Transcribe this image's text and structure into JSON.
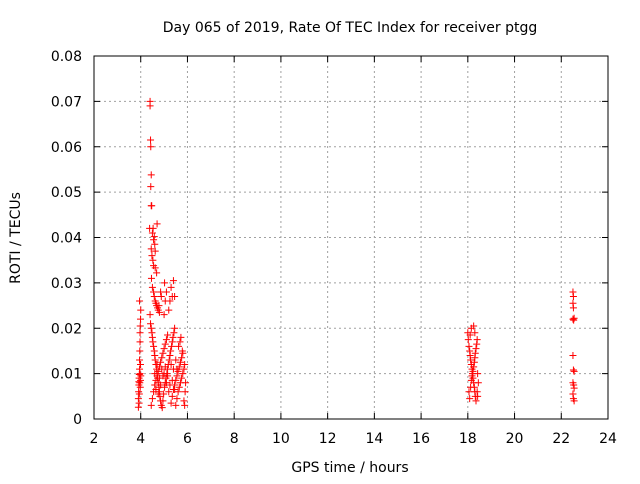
{
  "chart_data": {
    "type": "scatter",
    "title": "Day 065 of 2019, Rate Of TEC Index for receiver ptgg",
    "xlabel": "GPS time / hours",
    "ylabel": "ROTI / TECUs",
    "xlim": [
      2,
      24
    ],
    "ylim": [
      0,
      0.08
    ],
    "xticks": [
      2,
      4,
      6,
      8,
      10,
      12,
      14,
      16,
      18,
      20,
      22,
      24
    ],
    "yticks": [
      0,
      0.01,
      0.02,
      0.03,
      0.04,
      0.05,
      0.06,
      0.07,
      0.08
    ],
    "xtick_labels": [
      "2",
      "4",
      "6",
      "8",
      "10",
      "12",
      "14",
      "16",
      "18",
      "20",
      "22",
      "24"
    ],
    "ytick_labels": [
      "0",
      "0.01",
      "0.02",
      "0.03",
      "0.04",
      "0.05",
      "0.06",
      "0.07",
      "0.08"
    ],
    "grid": true,
    "marker": "+",
    "series": [
      {
        "color": "#ff0000",
        "points": [
          [
            3.9,
            0.0026
          ],
          [
            3.9,
            0.0045
          ],
          [
            3.91,
            0.006
          ],
          [
            3.92,
            0.0075
          ],
          [
            3.92,
            0.0082
          ],
          [
            3.93,
            0.009
          ],
          [
            3.94,
            0.0098
          ],
          [
            3.95,
            0.011
          ],
          [
            3.95,
            0.013
          ],
          [
            3.96,
            0.015
          ],
          [
            3.97,
            0.017
          ],
          [
            3.97,
            0.019
          ],
          [
            3.98,
            0.0205
          ],
          [
            3.99,
            0.022
          ],
          [
            4.0,
            0.024
          ],
          [
            3.95,
            0.026
          ],
          [
            3.96,
            0.008
          ],
          [
            3.98,
            0.007
          ],
          [
            3.99,
            0.0085
          ],
          [
            4.0,
            0.0095
          ],
          [
            3.93,
            0.0035
          ],
          [
            3.94,
            0.0055
          ],
          [
            3.97,
            0.01
          ],
          [
            3.99,
            0.012
          ],
          [
            4.4,
            0.07
          ],
          [
            4.4,
            0.069
          ],
          [
            4.42,
            0.0615
          ],
          [
            4.43,
            0.06
          ],
          [
            4.45,
            0.0538
          ],
          [
            4.43,
            0.0512
          ],
          [
            4.45,
            0.047
          ],
          [
            4.47,
            0.047
          ],
          [
            4.38,
            0.042
          ],
          [
            4.5,
            0.041
          ],
          [
            4.55,
            0.0395
          ],
          [
            4.58,
            0.0402
          ],
          [
            4.6,
            0.0385
          ],
          [
            4.62,
            0.037
          ],
          [
            4.45,
            0.0375
          ],
          [
            4.48,
            0.036
          ],
          [
            4.52,
            0.035
          ],
          [
            4.55,
            0.0338
          ],
          [
            4.62,
            0.0333
          ],
          [
            4.68,
            0.0322
          ],
          [
            4.7,
            0.043
          ],
          [
            4.53,
            0.042
          ],
          [
            4.46,
            0.031
          ],
          [
            4.5,
            0.029
          ],
          [
            4.55,
            0.028
          ],
          [
            4.58,
            0.027
          ],
          [
            4.62,
            0.026
          ],
          [
            4.65,
            0.0255
          ],
          [
            4.68,
            0.025
          ],
          [
            4.72,
            0.0245
          ],
          [
            4.75,
            0.024
          ],
          [
            4.78,
            0.025
          ],
          [
            4.8,
            0.0235
          ],
          [
            4.85,
            0.028
          ],
          [
            4.88,
            0.027
          ],
          [
            4.4,
            0.023
          ],
          [
            4.42,
            0.021
          ],
          [
            4.45,
            0.02
          ],
          [
            4.48,
            0.019
          ],
          [
            4.5,
            0.018
          ],
          [
            4.52,
            0.017
          ],
          [
            4.55,
            0.016
          ],
          [
            4.58,
            0.015
          ],
          [
            4.6,
            0.014
          ],
          [
            4.62,
            0.013
          ],
          [
            4.65,
            0.012
          ],
          [
            4.68,
            0.011
          ],
          [
            4.7,
            0.01
          ],
          [
            4.72,
            0.009
          ],
          [
            4.75,
            0.008
          ],
          [
            4.78,
            0.007
          ],
          [
            4.8,
            0.006
          ],
          [
            4.82,
            0.005
          ],
          [
            4.85,
            0.004
          ],
          [
            4.88,
            0.003
          ],
          [
            4.45,
            0.003
          ],
          [
            4.5,
            0.0045
          ],
          [
            4.55,
            0.006
          ],
          [
            4.6,
            0.0075
          ],
          [
            4.65,
            0.0085
          ],
          [
            4.7,
            0.0095
          ],
          [
            4.75,
            0.0105
          ],
          [
            4.8,
            0.0115
          ],
          [
            4.85,
            0.0125
          ],
          [
            4.9,
            0.0135
          ],
          [
            4.95,
            0.0145
          ],
          [
            5.0,
            0.0155
          ],
          [
            5.05,
            0.0165
          ],
          [
            5.1,
            0.0175
          ],
          [
            5.15,
            0.0185
          ],
          [
            4.92,
            0.0025
          ],
          [
            4.95,
            0.004
          ],
          [
            4.98,
            0.0055
          ],
          [
            5.02,
            0.007
          ],
          [
            5.05,
            0.008
          ],
          [
            5.08,
            0.009
          ],
          [
            5.12,
            0.01
          ],
          [
            5.15,
            0.011
          ],
          [
            5.18,
            0.012
          ],
          [
            5.22,
            0.013
          ],
          [
            5.25,
            0.014
          ],
          [
            5.28,
            0.015
          ],
          [
            5.32,
            0.016
          ],
          [
            5.35,
            0.017
          ],
          [
            5.38,
            0.018
          ],
          [
            5.42,
            0.019
          ],
          [
            5.45,
            0.02
          ],
          [
            5.0,
            0.023
          ],
          [
            5.05,
            0.026
          ],
          [
            5.1,
            0.028
          ],
          [
            5.02,
            0.03
          ],
          [
            5.3,
            0.029
          ],
          [
            5.35,
            0.027
          ],
          [
            5.4,
            0.0305
          ],
          [
            5.45,
            0.027
          ],
          [
            5.25,
            0.026
          ],
          [
            5.2,
            0.024
          ],
          [
            5.3,
            0.0035
          ],
          [
            5.35,
            0.005
          ],
          [
            5.4,
            0.0065
          ],
          [
            5.45,
            0.0075
          ],
          [
            5.5,
            0.0085
          ],
          [
            5.55,
            0.0095
          ],
          [
            5.6,
            0.0105
          ],
          [
            5.65,
            0.0115
          ],
          [
            5.7,
            0.0125
          ],
          [
            5.75,
            0.0135
          ],
          [
            5.8,
            0.0145
          ],
          [
            5.5,
            0.003
          ],
          [
            5.55,
            0.0045
          ],
          [
            5.6,
            0.006
          ],
          [
            5.65,
            0.007
          ],
          [
            5.7,
            0.008
          ],
          [
            5.75,
            0.009
          ],
          [
            5.8,
            0.01
          ],
          [
            5.85,
            0.011
          ],
          [
            5.88,
            0.012
          ],
          [
            5.62,
            0.016
          ],
          [
            5.68,
            0.017
          ],
          [
            5.72,
            0.018
          ],
          [
            5.78,
            0.015
          ],
          [
            5.85,
            0.004
          ],
          [
            5.88,
            0.003
          ],
          [
            5.9,
            0.006
          ],
          [
            5.92,
            0.008
          ],
          [
            4.6,
            0.01
          ],
          [
            4.7,
            0.012
          ],
          [
            4.8,
            0.009
          ],
          [
            4.9,
            0.011
          ],
          [
            5.0,
            0.01
          ],
          [
            5.1,
            0.008
          ],
          [
            5.2,
            0.006
          ],
          [
            5.3,
            0.012
          ],
          [
            5.4,
            0.011
          ],
          [
            5.5,
            0.013
          ],
          [
            4.65,
            0.0065
          ],
          [
            4.75,
            0.0055
          ],
          [
            4.85,
            0.0075
          ],
          [
            4.95,
            0.0095
          ],
          [
            5.05,
            0.0115
          ],
          [
            5.15,
            0.0095
          ],
          [
            5.25,
            0.0075
          ],
          [
            5.35,
            0.0085
          ],
          [
            5.45,
            0.0065
          ],
          [
            5.55,
            0.011
          ],
          [
            18.0,
            0.019
          ],
          [
            18.02,
            0.0175
          ],
          [
            18.05,
            0.016
          ],
          [
            18.08,
            0.015
          ],
          [
            18.1,
            0.014
          ],
          [
            18.12,
            0.013
          ],
          [
            18.15,
            0.012
          ],
          [
            18.18,
            0.011
          ],
          [
            18.2,
            0.01
          ],
          [
            18.22,
            0.009
          ],
          [
            18.25,
            0.008
          ],
          [
            18.28,
            0.007
          ],
          [
            18.3,
            0.006
          ],
          [
            18.32,
            0.005
          ],
          [
            18.35,
            0.004
          ],
          [
            18.05,
            0.006
          ],
          [
            18.08,
            0.0045
          ],
          [
            18.12,
            0.007
          ],
          [
            18.15,
            0.0085
          ],
          [
            18.18,
            0.0095
          ],
          [
            18.22,
            0.0105
          ],
          [
            18.25,
            0.0115
          ],
          [
            18.28,
            0.0125
          ],
          [
            18.3,
            0.0135
          ],
          [
            18.32,
            0.0145
          ],
          [
            18.35,
            0.0155
          ],
          [
            18.38,
            0.0165
          ],
          [
            18.4,
            0.0175
          ],
          [
            18.15,
            0.02
          ],
          [
            18.25,
            0.0205
          ],
          [
            18.1,
            0.0185
          ],
          [
            18.3,
            0.019
          ],
          [
            18.42,
            0.01
          ],
          [
            18.45,
            0.008
          ],
          [
            18.4,
            0.006
          ],
          [
            18.42,
            0.005
          ],
          [
            22.5,
            0.028
          ],
          [
            22.52,
            0.027
          ],
          [
            22.5,
            0.0255
          ],
          [
            22.52,
            0.0245
          ],
          [
            22.5,
            0.022
          ],
          [
            22.53,
            0.0218
          ],
          [
            22.55,
            0.0222
          ],
          [
            22.5,
            0.014
          ],
          [
            22.52,
            0.0108
          ],
          [
            22.55,
            0.0105
          ],
          [
            22.5,
            0.008
          ],
          [
            22.53,
            0.0075
          ],
          [
            22.55,
            0.0068
          ],
          [
            22.5,
            0.0055
          ],
          [
            22.52,
            0.0045
          ],
          [
            22.55,
            0.004
          ]
        ]
      }
    ]
  }
}
